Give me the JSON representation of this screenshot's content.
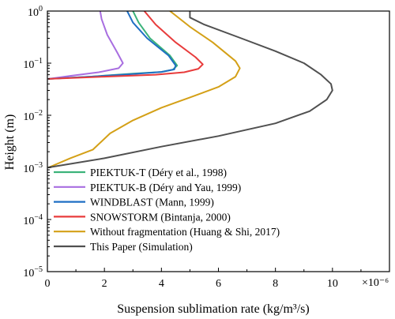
{
  "chart_data": {
    "type": "line",
    "xlabel": "Suspension sublimation rate (kg/m³/s)",
    "ylabel": "Height (m)",
    "x_multiplier_label": "×10⁻⁶",
    "xlim": [
      0,
      12
    ],
    "ylim": [
      1e-05,
      1
    ],
    "yscale": "log",
    "x_ticks": [
      0,
      2,
      4,
      6,
      8,
      10
    ],
    "x_tick_labels": [
      "0",
      "2",
      "4",
      "6",
      "8",
      "10"
    ],
    "y_ticks": [
      1e-05,
      0.0001,
      0.001,
      0.01,
      0.1,
      1
    ],
    "y_tick_labels": [
      {
        "base": "10",
        "exp": "−5"
      },
      {
        "base": "10",
        "exp": "−4"
      },
      {
        "base": "10",
        "exp": "−3"
      },
      {
        "base": "10",
        "exp": "−2"
      },
      {
        "base": "10",
        "exp": "−1"
      },
      {
        "base": "10",
        "exp": "0"
      }
    ],
    "grid": false,
    "legend_position": "lower-left",
    "series": [
      {
        "name": "PIEKTUK-T (Déry et al., 1998)",
        "color": "#3cb37a",
        "points": [
          [
            0.05,
            0.05
          ],
          [
            1.5,
            0.055
          ],
          [
            3.0,
            0.063
          ],
          [
            4.0,
            0.068
          ],
          [
            4.4,
            0.075
          ],
          [
            4.55,
            0.09
          ],
          [
            4.3,
            0.14
          ],
          [
            3.6,
            0.3
          ],
          [
            3.2,
            0.6
          ],
          [
            3.0,
            1.0
          ]
        ]
      },
      {
        "name": "PIEKTUK-B (Déry and Yau, 1999)",
        "color": "#a86ee0",
        "points": [
          [
            0.05,
            0.05
          ],
          [
            0.8,
            0.057
          ],
          [
            1.8,
            0.067
          ],
          [
            2.5,
            0.08
          ],
          [
            2.65,
            0.1
          ],
          [
            2.45,
            0.16
          ],
          [
            2.1,
            0.35
          ],
          [
            1.9,
            0.7
          ],
          [
            1.85,
            1.0
          ]
        ]
      },
      {
        "name": "WINDBLAST (Mann, 1999)",
        "color": "#1f6fc4",
        "points": [
          [
            0.05,
            0.05
          ],
          [
            1.5,
            0.055
          ],
          [
            3.0,
            0.062
          ],
          [
            4.0,
            0.068
          ],
          [
            4.45,
            0.076
          ],
          [
            4.5,
            0.09
          ],
          [
            4.25,
            0.14
          ],
          [
            3.5,
            0.3
          ],
          [
            3.0,
            0.6
          ],
          [
            2.8,
            1.0
          ]
        ]
      },
      {
        "name": "SNOWSTORM (Bintanja, 2000)",
        "color": "#e83c3c",
        "points": [
          [
            0.05,
            0.05
          ],
          [
            2.0,
            0.055
          ],
          [
            3.8,
            0.06
          ],
          [
            4.8,
            0.067
          ],
          [
            5.3,
            0.078
          ],
          [
            5.45,
            0.095
          ],
          [
            5.2,
            0.13
          ],
          [
            4.5,
            0.25
          ],
          [
            3.8,
            0.55
          ],
          [
            3.4,
            1.0
          ]
        ]
      },
      {
        "name": "Without fragmentation (Huang & Shi, 2017)",
        "color": "#d4a017",
        "points": [
          [
            0.05,
            0.001
          ],
          [
            0.8,
            0.0015
          ],
          [
            1.6,
            0.0022
          ],
          [
            2.2,
            0.0045
          ],
          [
            3.0,
            0.008
          ],
          [
            4.0,
            0.014
          ],
          [
            5.0,
            0.022
          ],
          [
            6.0,
            0.035
          ],
          [
            6.6,
            0.055
          ],
          [
            6.75,
            0.08
          ],
          [
            6.6,
            0.11
          ],
          [
            5.8,
            0.25
          ],
          [
            5.0,
            0.5
          ],
          [
            4.3,
            1.0
          ]
        ]
      },
      {
        "name": "This Paper (Simulation)",
        "color": "#505050",
        "points": [
          [
            0.05,
            0.001
          ],
          [
            2.0,
            0.0015
          ],
          [
            4.0,
            0.0025
          ],
          [
            6.0,
            0.004
          ],
          [
            8.0,
            0.007
          ],
          [
            9.2,
            0.012
          ],
          [
            9.8,
            0.02
          ],
          [
            10.0,
            0.03
          ],
          [
            9.95,
            0.04
          ],
          [
            9.6,
            0.06
          ],
          [
            9.0,
            0.1
          ],
          [
            8.0,
            0.17
          ],
          [
            6.8,
            0.3
          ],
          [
            5.5,
            0.55
          ],
          [
            5.0,
            0.75
          ],
          [
            5.0,
            1.0
          ]
        ]
      }
    ]
  }
}
